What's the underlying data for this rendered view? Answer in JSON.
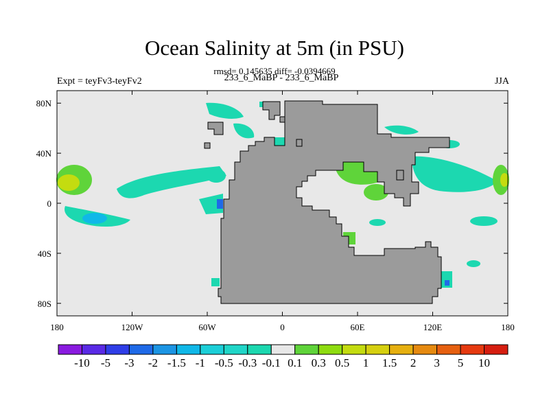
{
  "title": "Ocean Salinity at 5m (in PSU)",
  "stats": "rmsd= 0.145635 diff= -0.0394669",
  "left_label": "Expt = teyFv3-teyFv2",
  "center_label": "233_6_MaBP - 233_6_MaBP",
  "right_label": "JJA",
  "map": {
    "lon_range": [
      -180,
      180
    ],
    "lat_range": [
      -90,
      90
    ],
    "x_ticks": [
      {
        "value": -180,
        "label": "180"
      },
      {
        "value": -120,
        "label": "120W"
      },
      {
        "value": -60,
        "label": "60W"
      },
      {
        "value": 0,
        "label": "0"
      },
      {
        "value": 60,
        "label": "60E"
      },
      {
        "value": 120,
        "label": "120E"
      },
      {
        "value": 180,
        "label": "180"
      }
    ],
    "y_ticks": [
      {
        "value": 80,
        "label": "80N"
      },
      {
        "value": 40,
        "label": "40N"
      },
      {
        "value": 0,
        "label": "0"
      },
      {
        "value": -40,
        "label": "40S"
      },
      {
        "value": -80,
        "label": "80S"
      }
    ],
    "colors": {
      "background": "#e8e8e8",
      "land": "#9b9b9b"
    }
  },
  "colorbar": {
    "labels": [
      "-10",
      "-5",
      "-3",
      "-2",
      "-1.5",
      "-1",
      "-0.5",
      "-0.3",
      "-0.1",
      "0.1",
      "0.3",
      "0.5",
      "1",
      "1.5",
      "2",
      "3",
      "5",
      "10"
    ],
    "colors": [
      "#8a1be0",
      "#5a2ae6",
      "#2f3ee8",
      "#1f6ae8",
      "#1c95e4",
      "#10b8e8",
      "#1ccfd8",
      "#20d6c8",
      "#1cd8b0",
      "#e8e8e8",
      "#5fd43a",
      "#8edc10",
      "#c4dc10",
      "#d6d010",
      "#e6b010",
      "#e68a10",
      "#e66010",
      "#e63a10",
      "#d61e10"
    ]
  }
}
